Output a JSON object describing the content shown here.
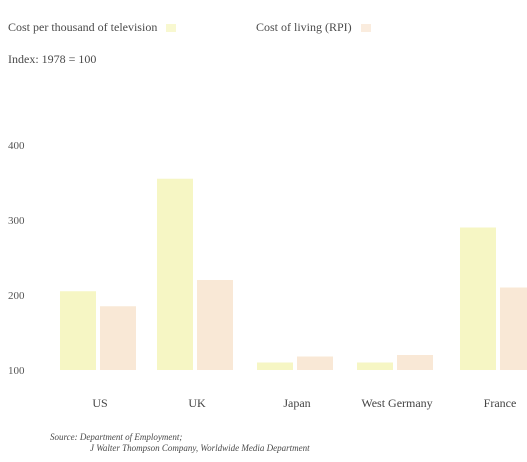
{
  "legend": {
    "series_a": "Cost per thousand of television",
    "series_b": "Cost of living (RPI)"
  },
  "index_note": "Index: 1978 = 100",
  "source": {
    "line1": "Source: Department of Employment;",
    "line2": "J Walter Thompson Company, Worldwide Media Department"
  },
  "chart_data": {
    "type": "bar",
    "title": "",
    "xlabel": "",
    "ylabel": "Index: 1978 = 100",
    "categories": [
      "US",
      "UK",
      "Japan",
      "West Germany",
      "France"
    ],
    "series": [
      {
        "name": "Cost per thousand of television",
        "values": [
          205,
          355,
          110,
          110,
          290
        ],
        "color": "#f3f3b0"
      },
      {
        "name": "Cost of living (RPI)",
        "values": [
          185,
          220,
          118,
          120,
          210
        ],
        "color": "#f7e0c8"
      }
    ],
    "ylim": [
      100,
      400
    ],
    "yticks": [
      100,
      200,
      300,
      400
    ],
    "grid": false,
    "legend": "top-left"
  }
}
